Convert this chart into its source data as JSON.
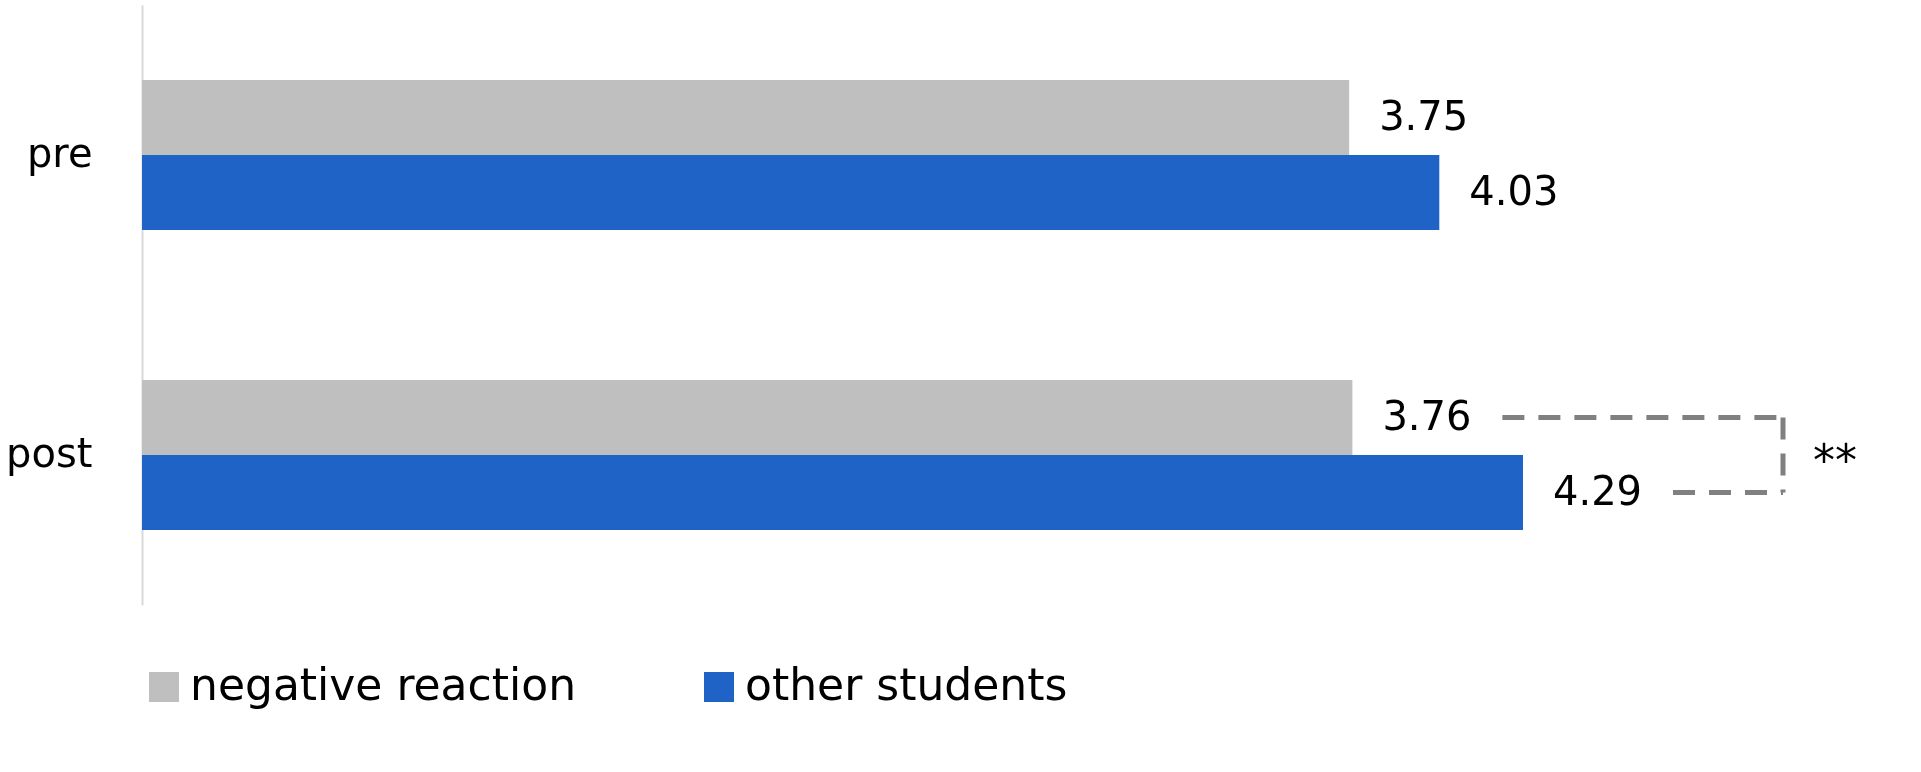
{
  "chart_data": {
    "type": "bar",
    "orientation": "horizontal",
    "categories": [
      "pre",
      "post"
    ],
    "series": [
      {
        "name": "negative reaction",
        "color": "#bfbfbf",
        "values": [
          3.75,
          3.76
        ]
      },
      {
        "name": "other students",
        "color": "#1f63c6",
        "values": [
          4.03,
          4.29
        ]
      }
    ],
    "data_labels": true,
    "legend": "bottom",
    "grid": false,
    "annotations": [
      "**"
    ]
  }
}
